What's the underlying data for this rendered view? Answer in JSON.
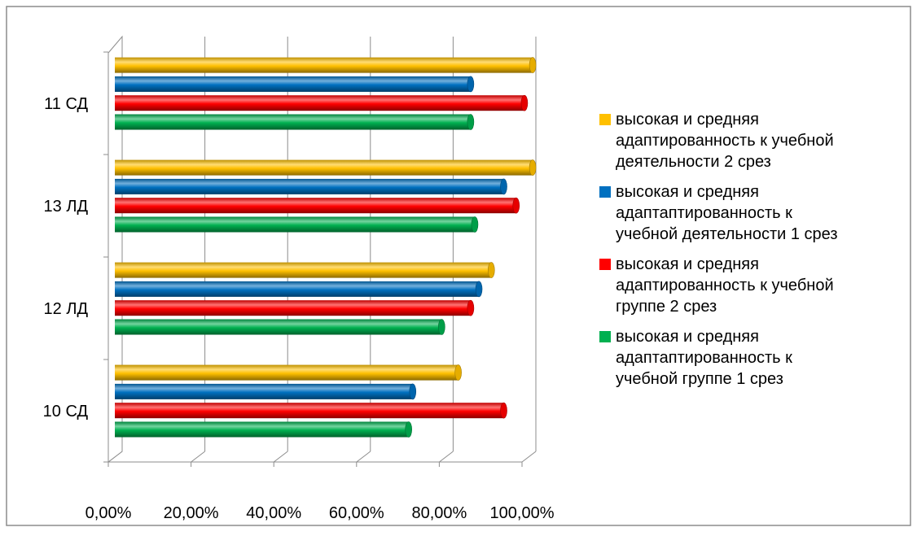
{
  "chart_data": {
    "type": "bar",
    "orientation": "horizontal",
    "categories": [
      "10 СД",
      "12 ЛД",
      "13 ЛД",
      "11 СД"
    ],
    "series": [
      {
        "name": "высокая и средняя адаптаптированность к учебной группе 1 срез",
        "color": "#00b050",
        "values": [
          0.71,
          0.79,
          0.87,
          0.86
        ]
      },
      {
        "name": "высокая и средняя адаптированность к учебной группе 2 срез",
        "color": "#ff0000",
        "values": [
          0.94,
          0.86,
          0.97,
          0.99
        ]
      },
      {
        "name": "высокая и средняя адаптаптированность к учебной деятельности 1 срез",
        "color": "#0070c0",
        "values": [
          0.72,
          0.88,
          0.94,
          0.86
        ]
      },
      {
        "name": "высокая и средняя адаптированность к учебной деятельности 2 срез",
        "color": "#ffc000",
        "values": [
          0.83,
          0.91,
          1.01,
          1.01
        ]
      }
    ],
    "xticks": [
      "0,00%",
      "20,00%",
      "40,00%",
      "60,00%",
      "80,00%",
      "100,00%"
    ],
    "xlim": [
      0,
      1
    ],
    "grid": true,
    "legend": [
      {
        "lines": [
          "высокая и средняя",
          "адаптированность к учебной",
          "деятельности 2 срез"
        ],
        "color": "#ffc000"
      },
      {
        "lines": [
          "высокая и средняя",
          "адаптаптированность к",
          "учебной деятельности 1 срез"
        ],
        "color": "#0070c0"
      },
      {
        "lines": [
          "высокая и средняя",
          "адаптированность к учебной",
          "группе 2 срез"
        ],
        "color": "#ff0000"
      },
      {
        "lines": [
          "высокая и средняя",
          "адаптаптированность к",
          "учебной группе 1 срез"
        ],
        "color": "#00b050"
      }
    ],
    "legend_position": "right"
  }
}
